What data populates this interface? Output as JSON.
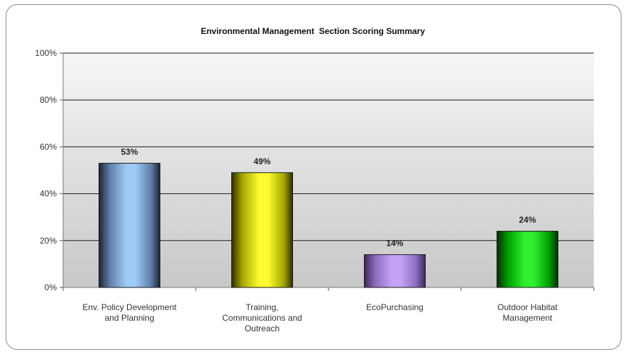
{
  "chart_data": {
    "type": "bar",
    "title": "Environmental Management  Section Scoring Summary",
    "categories": [
      [
        "Env. Policy Development",
        "and Planning"
      ],
      [
        "Training,",
        "Communications and",
        "Outreach"
      ],
      [
        "EcoPurchasing"
      ],
      [
        "Outdoor Habitat",
        "Management"
      ]
    ],
    "values": [
      53,
      49,
      14,
      24
    ],
    "data_labels": [
      "53%",
      "49%",
      "14%",
      "24%"
    ],
    "bar_colors": [
      {
        "edge": "#1c2536",
        "light": "#9ecbf6",
        "mid": "#5f7fa8"
      },
      {
        "edge": "#2f2f00",
        "light": "#fbfb30",
        "mid": "#a8a800"
      },
      {
        "edge": "#3a2a56",
        "light": "#c6a2f6",
        "mid": "#8c6cc0"
      },
      {
        "edge": "#003000",
        "light": "#30ee30",
        "mid": "#00a000"
      }
    ],
    "ylim": [
      0,
      100
    ],
    "yticks": [
      0,
      20,
      40,
      60,
      80,
      100
    ],
    "ytick_labels": [
      "0%",
      "20%",
      "40%",
      "60%",
      "80%",
      "100%"
    ],
    "xlabel": "",
    "ylabel": "",
    "grid": true,
    "legend": "none",
    "plot_background": {
      "top": "#f6f6f6",
      "bottom": "#c8c8c8"
    }
  }
}
